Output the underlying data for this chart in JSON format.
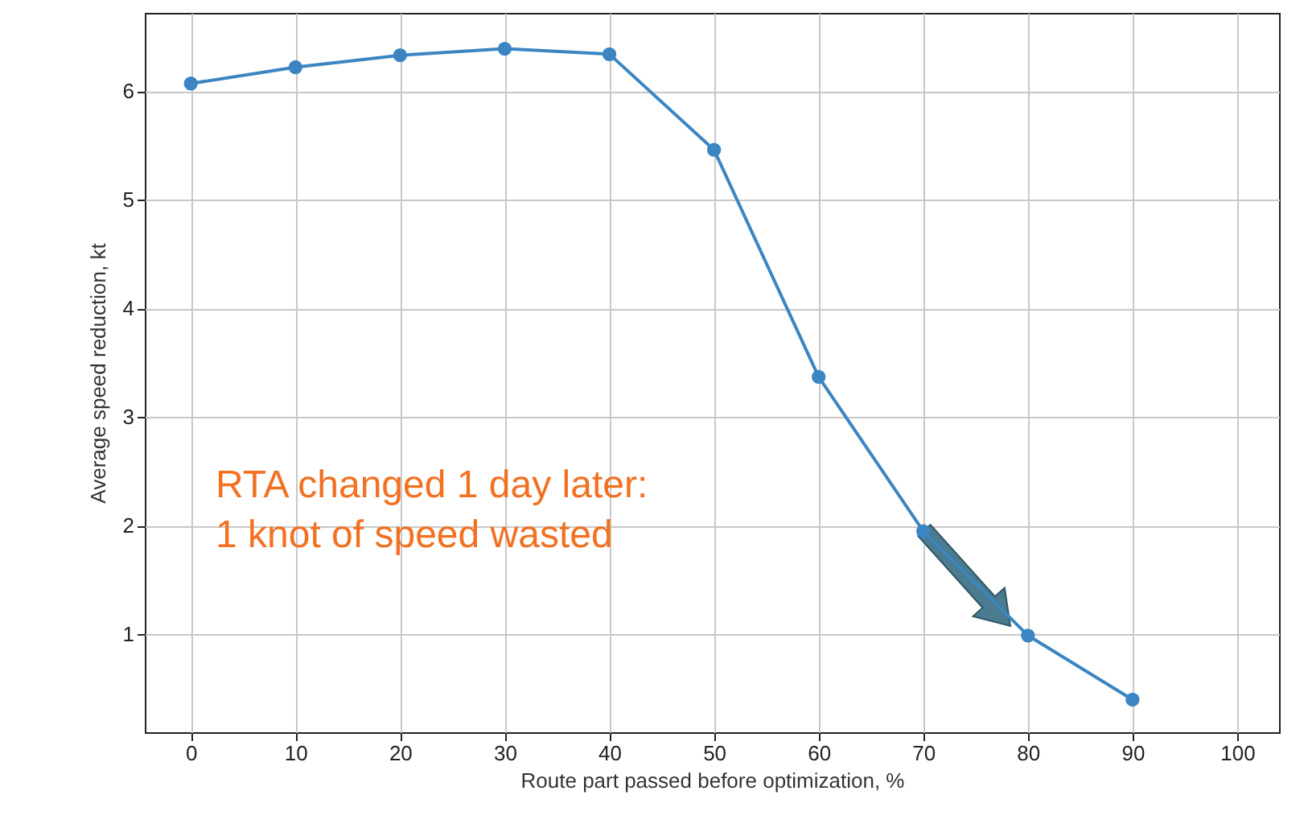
{
  "chart_data": {
    "type": "line",
    "xlabel": "Route part passed before optimization, %",
    "ylabel": "Average speed reduction, kt",
    "x": [
      0,
      10,
      20,
      30,
      40,
      50,
      60,
      70,
      80,
      90
    ],
    "series": [
      {
        "color": "#3b85c2",
        "values": [
          6.07,
          6.22,
          6.33,
          6.39,
          6.34,
          5.46,
          3.37,
          1.95,
          0.99,
          0.4
        ]
      }
    ],
    "xlim": [
      -4.4,
      104
    ],
    "xticks": [
      0,
      10,
      20,
      30,
      40,
      50,
      60,
      70,
      80,
      90,
      100
    ],
    "ylim": [
      0.1,
      6.72
    ],
    "yticks": [
      1,
      2,
      3,
      4,
      5,
      6
    ],
    "grid": true,
    "marker": "circle",
    "line_style": "solid",
    "annotations": [
      "RTA changed 1 day later:\n1 knot of speed wasted"
    ]
  }
}
